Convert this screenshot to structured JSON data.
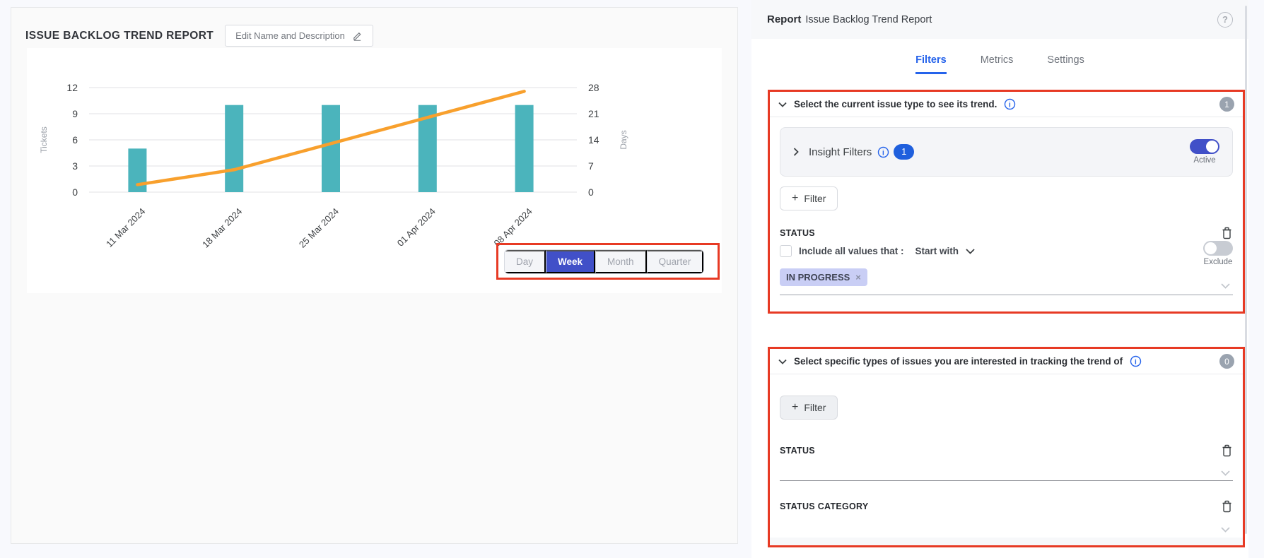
{
  "left_panel": {
    "title": "ISSUE BACKLOG TREND REPORT",
    "edit_button_label": "Edit Name and Description",
    "time_toggle": {
      "options": [
        "Day",
        "Week",
        "Month",
        "Quarter"
      ],
      "selected": "Week"
    }
  },
  "chart_data": {
    "type": "combo-bar-line",
    "categories": [
      "11 Mar 2024",
      "18 Mar 2024",
      "25 Mar 2024",
      "01 Apr 2024",
      "08 Apr 2024"
    ],
    "series": [
      {
        "name": "Tickets",
        "type": "bar",
        "axis": "left",
        "values": [
          5,
          10,
          10,
          10,
          10
        ],
        "color": "#4bb4bc"
      },
      {
        "name": "Days",
        "type": "line",
        "axis": "right",
        "values": [
          2,
          6,
          13,
          20,
          27
        ],
        "color": "#f8a02d"
      }
    ],
    "left_axis": {
      "label": "Tickets",
      "ticks": [
        0,
        3,
        6,
        9,
        12
      ],
      "range": [
        0,
        12
      ]
    },
    "right_axis": {
      "label": "Days",
      "ticks": [
        0,
        7,
        14,
        21,
        28
      ],
      "range": [
        0,
        28
      ]
    },
    "grid": true,
    "legend": "none"
  },
  "right_panel": {
    "header": {
      "label": "Report",
      "title": "Issue Backlog Trend Report"
    },
    "tabs": [
      {
        "label": "Filters",
        "active": true
      },
      {
        "label": "Metrics",
        "active": false
      },
      {
        "label": "Settings",
        "active": false
      }
    ],
    "sections": [
      {
        "title": "Select the current issue type to see its trend.",
        "badge": "1",
        "insight_filters": {
          "label": "Insight Filters",
          "badge": "1",
          "toggle_label": "Active",
          "toggle_on": true
        },
        "filter_button_label": "Filter",
        "fields": [
          {
            "label": "STATUS",
            "include_label": "Include all values that :",
            "operator": "Start with",
            "exclude_label": "Exclude",
            "exclude_on": false,
            "chips": [
              "IN PROGRESS"
            ]
          }
        ]
      },
      {
        "title": "Select specific types of issues you are interested in tracking the trend of",
        "badge": "0",
        "filter_button_label": "Filter",
        "fields": [
          {
            "label": "STATUS"
          },
          {
            "label": "STATUS CATEGORY"
          }
        ]
      }
    ]
  },
  "colors": {
    "accent_blue": "#2563eb",
    "indigo_selected": "#4150c8",
    "bar_teal": "#4bb4bc",
    "line_orange": "#f8a02d",
    "annotation_red": "#e73a24",
    "chip_lavender": "#c9cef5",
    "badge_gray": "#9aa3af"
  }
}
